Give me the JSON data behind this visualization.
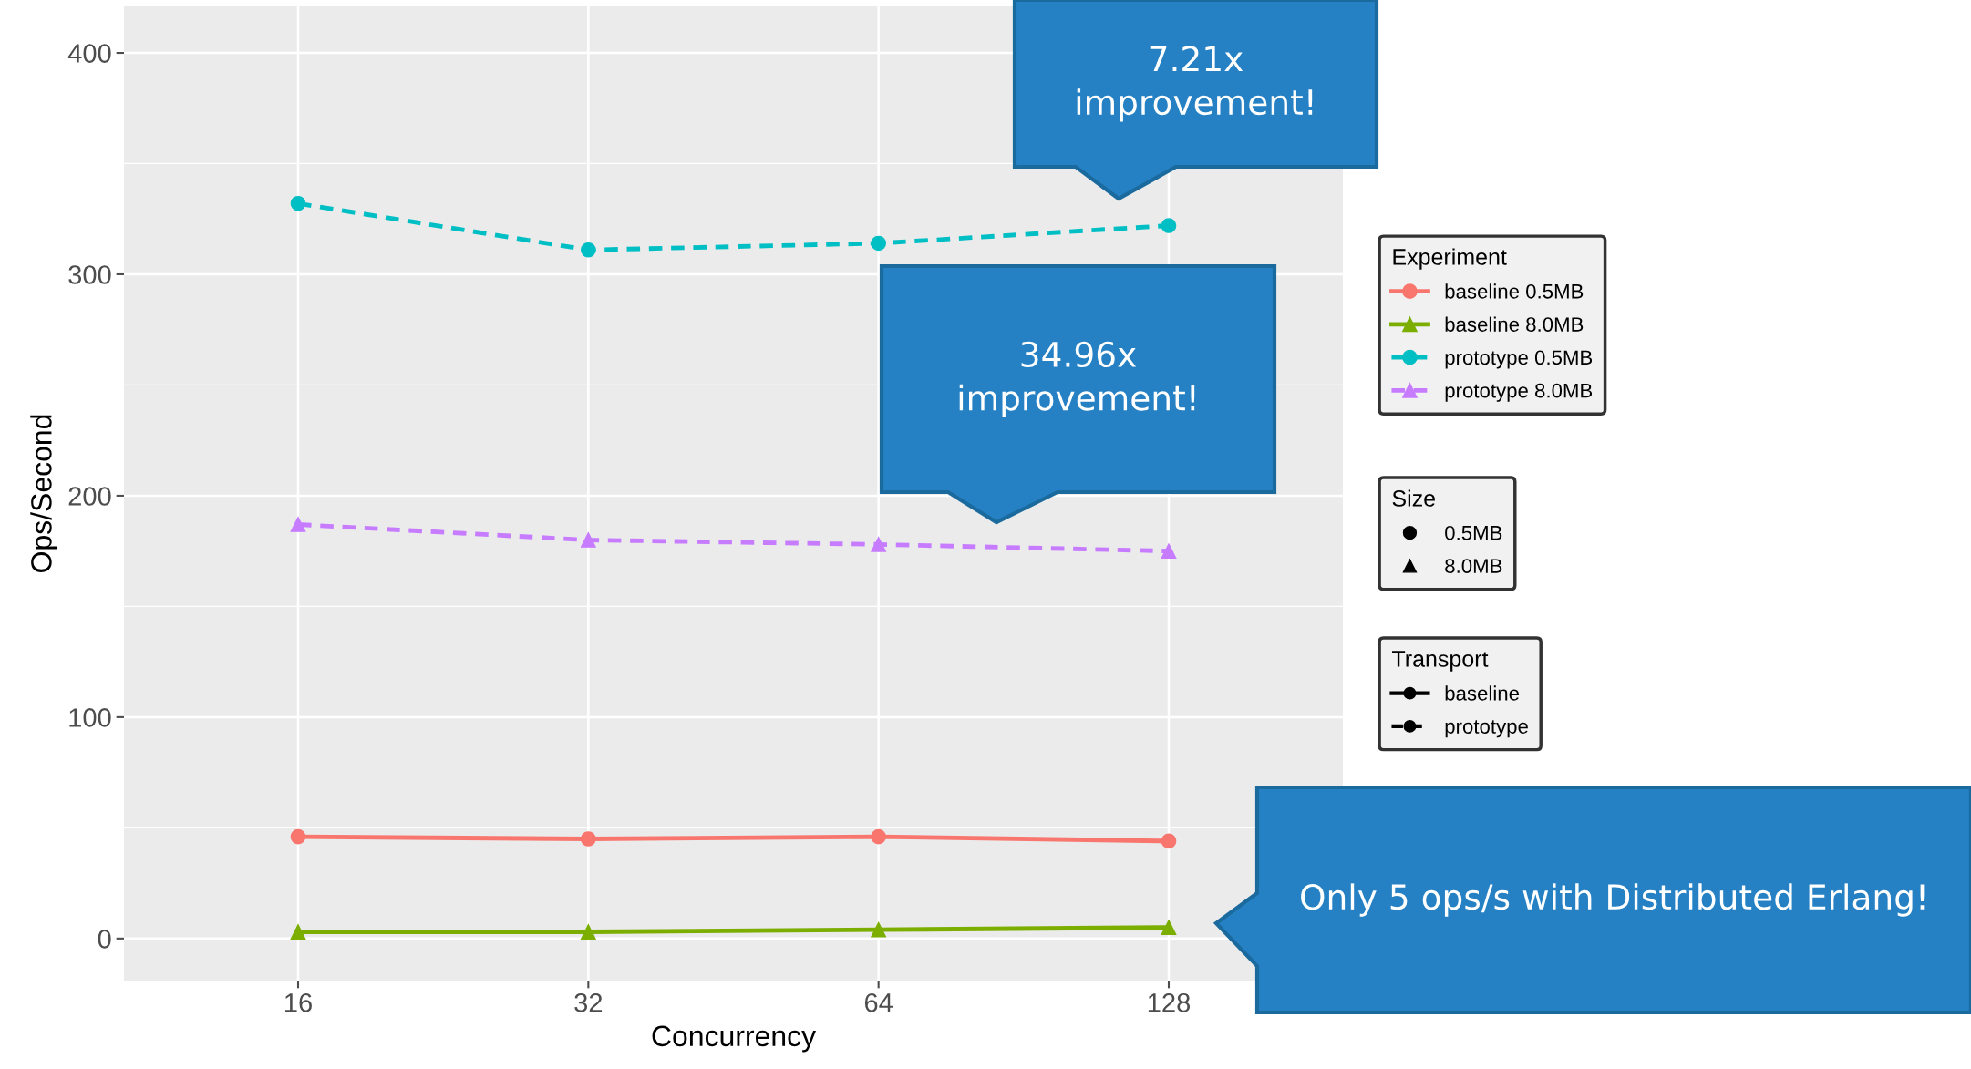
{
  "chart_data": {
    "type": "line",
    "xlabel": "Concurrency",
    "ylabel": "Ops/Second",
    "legend_title": "Experiment",
    "categories": [
      "16",
      "32",
      "64",
      "128"
    ],
    "series": [
      {
        "name": "baseline 0.5MB",
        "color": "#F8766D",
        "values": [
          46,
          45,
          46,
          44
        ],
        "marker": "circle",
        "line_style": "solid"
      },
      {
        "name": "baseline 8.0MB",
        "color": "#7CAE00",
        "values": [
          3,
          3,
          4,
          5
        ],
        "marker": "triangle",
        "line_style": "solid"
      },
      {
        "name": "prototype 0.5MB",
        "color": "#00BFC4",
        "values": [
          332,
          311,
          314,
          322
        ],
        "marker": "circle",
        "line_style": "dashed"
      },
      {
        "name": "prototype 8.0MB",
        "color": "#C77CFF",
        "values": [
          187,
          180,
          178,
          175
        ],
        "marker": "triangle",
        "line_style": "dashed"
      }
    ],
    "ylim": [
      -19,
      421
    ],
    "yticks": [
      0,
      100,
      200,
      300,
      400
    ],
    "grid": true,
    "legend": "right",
    "annotations": [
      "7.21x\nimprovement!",
      "34.96x\nimprovement!",
      "Only 5 ops/s with Distributed Erlang!",
      "Size",
      "0.5MB",
      "8.0MB",
      "Transport",
      "baseline",
      "prototype"
    ]
  }
}
